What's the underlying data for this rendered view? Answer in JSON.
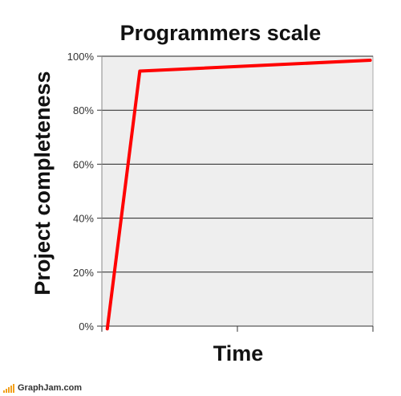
{
  "chart_data": {
    "type": "line",
    "title": "Programmers scale",
    "xlabel": "Time",
    "ylabel": "Project completeness",
    "ylim": [
      0,
      100
    ],
    "y_ticks": [
      "0%",
      "20%",
      "40%",
      "60%",
      "80%",
      "100%"
    ],
    "y_tick_values": [
      0,
      20,
      40,
      60,
      80,
      100
    ],
    "x_tick_count": 3,
    "grid": true,
    "xlim": [
      0,
      100
    ],
    "series": [
      {
        "color": "#ff0000",
        "x": [
          2,
          14,
          99
        ],
        "y": [
          -1,
          94.5,
          98.5
        ]
      }
    ]
  },
  "footer": {
    "site": "GraphJam.com",
    "logo": "bar-chart-logo-icon",
    "logo_color": "#f2a01c"
  }
}
